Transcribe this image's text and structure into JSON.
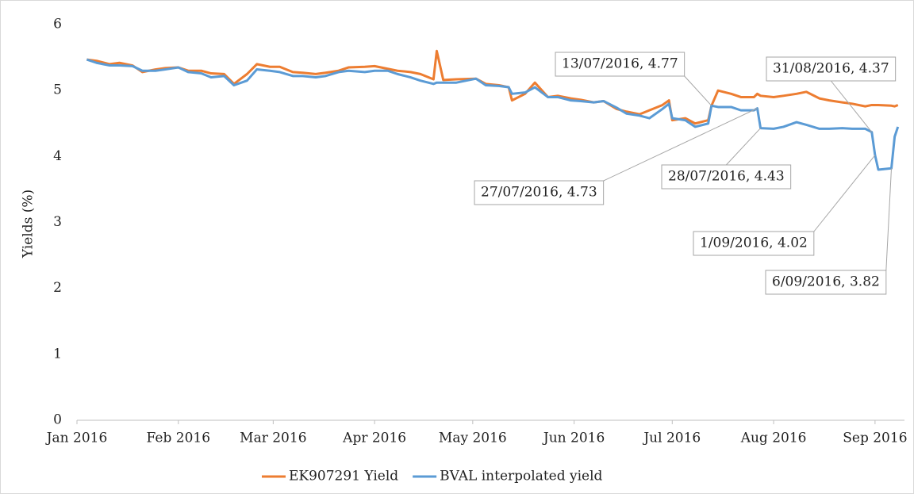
{
  "chart_data": {
    "type": "line",
    "y_label": "Yields (%)",
    "x": [
      "2016-01-04",
      "2016-01-07",
      "2016-01-11",
      "2016-01-14",
      "2016-01-18",
      "2016-01-21",
      "2016-01-25",
      "2016-01-28",
      "2016-02-01",
      "2016-02-04",
      "2016-02-08",
      "2016-02-11",
      "2016-02-15",
      "2016-02-18",
      "2016-02-22",
      "2016-02-25",
      "2016-02-29",
      "2016-03-03",
      "2016-03-07",
      "2016-03-10",
      "2016-03-14",
      "2016-03-17",
      "2016-03-21",
      "2016-03-24",
      "2016-03-29",
      "2016-04-01",
      "2016-04-05",
      "2016-04-08",
      "2016-04-12",
      "2016-04-15",
      "2016-04-19",
      "2016-04-20",
      "2016-04-22",
      "2016-04-26",
      "2016-05-02",
      "2016-05-05",
      "2016-05-09",
      "2016-05-12",
      "2016-05-13",
      "2016-05-17",
      "2016-05-20",
      "2016-05-24",
      "2016-05-27",
      "2016-05-31",
      "2016-06-03",
      "2016-06-07",
      "2016-06-10",
      "2016-06-14",
      "2016-06-17",
      "2016-06-21",
      "2016-06-24",
      "2016-06-28",
      "2016-06-30",
      "2016-07-01",
      "2016-07-05",
      "2016-07-08",
      "2016-07-12",
      "2016-07-13",
      "2016-07-15",
      "2016-07-19",
      "2016-07-22",
      "2016-07-26",
      "2016-07-27",
      "2016-07-28",
      "2016-08-01",
      "2016-08-04",
      "2016-08-08",
      "2016-08-11",
      "2016-08-15",
      "2016-08-18",
      "2016-08-22",
      "2016-08-25",
      "2016-08-29",
      "2016-08-31",
      "2016-09-01",
      "2016-09-02",
      "2016-09-06",
      "2016-09-07",
      "2016-09-08"
    ],
    "series": [
      {
        "name": "EK907291 Yield",
        "color": "#ED7D31",
        "values": [
          5.47,
          5.45,
          5.4,
          5.42,
          5.38,
          5.28,
          5.32,
          5.34,
          5.35,
          5.3,
          5.3,
          5.26,
          5.25,
          5.1,
          5.25,
          5.4,
          5.36,
          5.36,
          5.28,
          5.27,
          5.25,
          5.27,
          5.3,
          5.35,
          5.36,
          5.37,
          5.33,
          5.3,
          5.28,
          5.25,
          5.17,
          5.6,
          5.16,
          5.17,
          5.18,
          5.1,
          5.08,
          5.05,
          4.85,
          4.95,
          5.12,
          4.9,
          4.92,
          4.88,
          4.86,
          4.82,
          4.84,
          4.72,
          4.68,
          4.64,
          4.7,
          4.78,
          4.85,
          4.55,
          4.58,
          4.5,
          4.55,
          4.77,
          5.0,
          4.95,
          4.9,
          4.9,
          4.95,
          4.92,
          4.9,
          4.92,
          4.95,
          4.98,
          4.88,
          4.85,
          4.82,
          4.8,
          4.76,
          4.78,
          4.78,
          4.78,
          4.77,
          4.76,
          4.78
        ]
      },
      {
        "name": "BVAL interpolated yield",
        "color": "#5B9BD5",
        "values": [
          5.47,
          5.42,
          5.38,
          5.38,
          5.37,
          5.3,
          5.3,
          5.32,
          5.35,
          5.28,
          5.26,
          5.2,
          5.22,
          5.08,
          5.15,
          5.32,
          5.3,
          5.28,
          5.22,
          5.22,
          5.2,
          5.22,
          5.28,
          5.3,
          5.28,
          5.3,
          5.3,
          5.25,
          5.2,
          5.15,
          5.1,
          5.12,
          5.12,
          5.12,
          5.18,
          5.08,
          5.07,
          5.05,
          4.95,
          4.97,
          5.05,
          4.9,
          4.9,
          4.85,
          4.84,
          4.82,
          4.84,
          4.74,
          4.65,
          4.62,
          4.58,
          4.72,
          4.8,
          4.58,
          4.55,
          4.45,
          4.5,
          4.77,
          4.75,
          4.75,
          4.7,
          4.7,
          4.73,
          4.43,
          4.42,
          4.45,
          4.52,
          4.48,
          4.42,
          4.42,
          4.43,
          4.42,
          4.42,
          4.37,
          4.02,
          3.8,
          3.82,
          4.3,
          4.45
        ]
      }
    ],
    "xlim": [
      "2016-01-01",
      "2016-09-10"
    ],
    "xticks": [
      {
        "value": "2016-01-01",
        "label": "Jan 2016"
      },
      {
        "value": "2016-02-01",
        "label": "Feb 2016"
      },
      {
        "value": "2016-03-01",
        "label": "Mar 2016"
      },
      {
        "value": "2016-04-01",
        "label": "Apr 2016"
      },
      {
        "value": "2016-05-01",
        "label": "May 2016"
      },
      {
        "value": "2016-06-01",
        "label": "Jun 2016"
      },
      {
        "value": "2016-07-01",
        "label": "Jul 2016"
      },
      {
        "value": "2016-08-01",
        "label": "Aug 2016"
      },
      {
        "value": "2016-09-01",
        "label": "Sep 2016"
      }
    ],
    "ylim": [
      0,
      6
    ],
    "yticks": [
      0,
      1,
      2,
      3,
      4,
      5,
      6
    ],
    "legend": "bottom",
    "annotations": [
      {
        "label": "13/07/2016, 4.77",
        "x": "2016-07-13",
        "y": 4.77
      },
      {
        "label": "31/08/2016, 4.37",
        "x": "2016-08-31",
        "y": 4.37
      },
      {
        "label": "27/07/2016, 4.73",
        "x": "2016-07-27",
        "y": 4.73
      },
      {
        "label": "28/07/2016, 4.43",
        "x": "2016-07-28",
        "y": 4.43
      },
      {
        "label": "1/09/2016, 4.02",
        "x": "2016-09-01",
        "y": 4.02
      },
      {
        "label": "6/09/2016, 3.82",
        "x": "2016-09-06",
        "y": 3.82
      }
    ]
  }
}
